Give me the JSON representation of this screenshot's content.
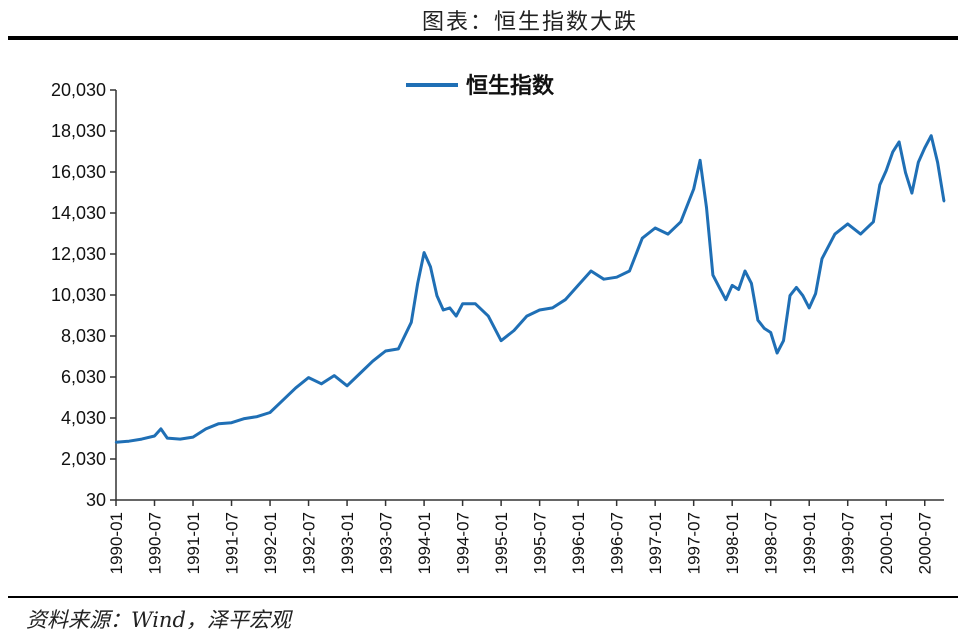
{
  "header": {
    "title": "图表：恒生指数大跌"
  },
  "footer": {
    "source": "资料来源：Wind，泽平宏观"
  },
  "colors": {
    "series": "#1f6fb5",
    "axis": "#333333",
    "rule": "#000000"
  },
  "chart_data": {
    "type": "line",
    "legend_position": "top-center",
    "grid": false,
    "y_ticks": [
      "30",
      "2,030",
      "4,030",
      "6,030",
      "8,030",
      "10,030",
      "12,030",
      "14,030",
      "16,030",
      "18,030",
      "20,030"
    ],
    "ylim": [
      30,
      20030
    ],
    "x_ticks": [
      "1990-01",
      "1990-07",
      "1991-01",
      "1991-07",
      "1992-01",
      "1992-07",
      "1993-01",
      "1993-07",
      "1994-01",
      "1994-07",
      "1995-01",
      "1995-07",
      "1996-01",
      "1996-07",
      "1997-01",
      "1997-07",
      "1998-01",
      "1998-07",
      "1999-01",
      "1999-07",
      "2000-01",
      "2000-07"
    ],
    "xlim": [
      "1990-01",
      "2000-10"
    ],
    "series": [
      {
        "name": "恒生指数",
        "x": [
          "1990-01",
          "1990-03",
          "1990-05",
          "1990-07",
          "1990-08",
          "1990-09",
          "1990-11",
          "1991-01",
          "1991-03",
          "1991-05",
          "1991-07",
          "1991-09",
          "1991-11",
          "1992-01",
          "1992-03",
          "1992-05",
          "1992-07",
          "1992-09",
          "1992-11",
          "1993-01",
          "1993-03",
          "1993-05",
          "1993-07",
          "1993-09",
          "1993-11",
          "1993-12",
          "1994-01",
          "1994-02",
          "1994-03",
          "1994-04",
          "1994-05",
          "1994-06",
          "1994-07",
          "1994-09",
          "1994-11",
          "1995-01",
          "1995-03",
          "1995-05",
          "1995-07",
          "1995-09",
          "1995-11",
          "1996-01",
          "1996-03",
          "1996-05",
          "1996-07",
          "1996-09",
          "1996-11",
          "1997-01",
          "1997-03",
          "1997-05",
          "1997-07",
          "1997-08",
          "1997-09",
          "1997-10",
          "1997-11",
          "1997-12",
          "1998-01",
          "1998-02",
          "1998-03",
          "1998-04",
          "1998-05",
          "1998-06",
          "1998-07",
          "1998-08",
          "1998-09",
          "1998-10",
          "1998-11",
          "1998-12",
          "1999-01",
          "1999-02",
          "1999-03",
          "1999-05",
          "1999-07",
          "1999-09",
          "1999-11",
          "1999-12",
          "2000-01",
          "2000-02",
          "2000-03",
          "2000-04",
          "2000-05",
          "2000-06",
          "2000-07",
          "2000-08",
          "2000-09",
          "2000-10"
        ],
        "values": [
          2850,
          2900,
          3000,
          3150,
          3500,
          3050,
          3000,
          3100,
          3500,
          3750,
          3800,
          4000,
          4100,
          4300,
          4900,
          5500,
          6000,
          5700,
          6100,
          5600,
          6200,
          6800,
          7300,
          7400,
          8700,
          10600,
          12100,
          11400,
          10000,
          9300,
          9400,
          9000,
          9600,
          9600,
          9000,
          7800,
          8300,
          9000,
          9300,
          9400,
          9800,
          10500,
          11200,
          10800,
          10900,
          11200,
          12800,
          13300,
          13000,
          13600,
          15200,
          16600,
          14300,
          11000,
          10400,
          9800,
          10500,
          10300,
          11200,
          10600,
          8800,
          8400,
          8200,
          7200,
          7800,
          10000,
          10400,
          10000,
          9400,
          10100,
          11800,
          13000,
          13500,
          13000,
          13600,
          15400,
          16100,
          17000,
          17500,
          16000,
          15000,
          16500,
          17200,
          17800,
          16500,
          14600
        ]
      }
    ]
  }
}
